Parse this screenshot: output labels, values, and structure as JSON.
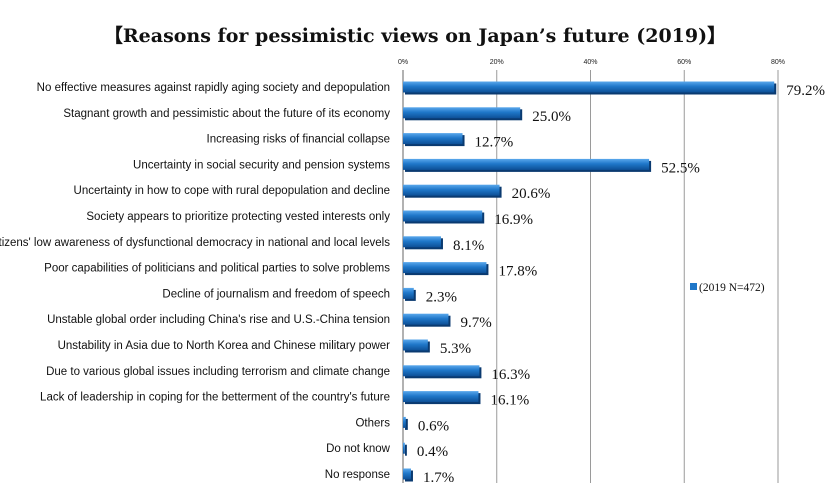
{
  "chart_data": {
    "type": "bar",
    "orientation": "horizontal",
    "title": "【Reasons for pessimistic views on Japan’s future (2019)】",
    "xlim": [
      0,
      80
    ],
    "x_ticks": [
      "0%",
      "20%",
      "40%",
      "60%",
      "80%"
    ],
    "grid": true,
    "legend_position": "right",
    "series": [
      {
        "name": "(2019 N=472)",
        "color": "#1f77c9",
        "values": [
          79.2,
          25.0,
          12.7,
          52.5,
          20.6,
          16.9,
          8.1,
          17.8,
          2.3,
          9.7,
          5.3,
          16.3,
          16.1,
          0.6,
          0.4,
          1.7
        ],
        "labels": [
          "79.2%",
          "25.0%",
          "12.7%",
          "52.5%",
          "20.6%",
          "16.9%",
          "8.1%",
          "17.8%",
          "2.3%",
          "9.7%",
          "5.3%",
          "16.3%",
          "16.1%",
          "0.6%",
          "0.4%",
          "1.7%"
        ]
      }
    ],
    "categories": [
      "No effective measures against rapidly aging society and depopulation",
      "Stagnant growth and pessimistic about the future of its economy",
      "Increasing risks of financial collapse",
      "Uncertainty in social security and pension systems",
      "Uncertainty in how to cope with rural depopulation and decline",
      "Society appears to prioritize protecting vested interests only",
      "Citizens' low awareness of dysfunctional democracy in national and local levels",
      "Poor capabilities of politicians and political parties to solve problems",
      "Decline of journalism and freedom of speech",
      "Unstable global order including China's rise and U.S.-China tension",
      "Unstability in Asia due to North Korea and Chinese military power",
      "Due to various global issues including terrorism and climate change",
      "Lack of leadership in coping for the betterment of the country's future",
      "Others",
      "Do not know",
      "No response"
    ]
  }
}
